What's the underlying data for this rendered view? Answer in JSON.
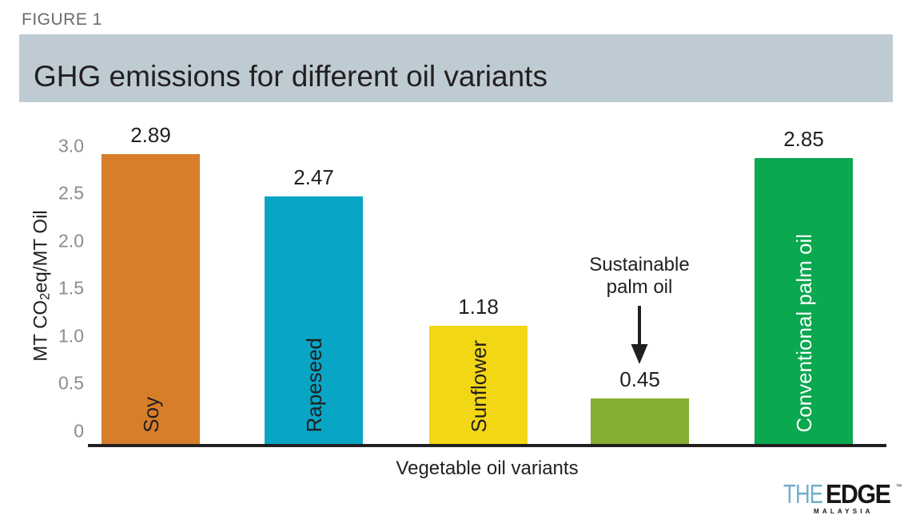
{
  "figure_label": "FIGURE 1",
  "title": "GHG emissions for different oil variants",
  "colors": {
    "banner_bg": "#BECBD2",
    "text_dark": "#231F20",
    "tick_label_gray": "#8A8C8E",
    "figure_label_gray": "#6A6B6D",
    "axis_line": "#231F20",
    "logo_the_blue": "#6FAECB",
    "logo_edge_black": "#161616"
  },
  "chart_data": {
    "type": "bar",
    "title": "GHG emissions for different oil variants",
    "xlabel": "Vegetable oil variants",
    "ylabel": "MT CO₂eq/MT Oil",
    "ylabel_parts": {
      "pre": "MT CO",
      "sub": "2",
      "post": "eq/MT Oil"
    },
    "ylim": [
      0,
      3.0
    ],
    "yticks": [
      "3.0",
      "2.5",
      "2.0",
      "1.5",
      "1.0",
      "0.5",
      "0"
    ],
    "grid": false,
    "legend": false,
    "categories": [
      "Soy",
      "Rapeseed",
      "Sunflower",
      "Sustainable palm oil",
      "Conventional palm oil"
    ],
    "values": [
      2.89,
      2.47,
      1.18,
      0.45,
      2.85
    ],
    "bars": [
      {
        "category": "Soy",
        "value": 2.89,
        "display_value": "2.89",
        "bar_text": "Soy",
        "color": "#D87E2B",
        "label_color": "#231F20"
      },
      {
        "category": "Rapeseed",
        "value": 2.47,
        "display_value": "2.47",
        "bar_text": "Rapeseed",
        "color": "#09A5C5",
        "label_color": "#231F20"
      },
      {
        "category": "Sunflower",
        "value": 1.18,
        "display_value": "1.18",
        "bar_text": "Sunflower",
        "color": "#F2D714",
        "label_color": "#231F20"
      },
      {
        "category": "Sustainable palm oil",
        "value": 0.45,
        "display_value": "0.45",
        "bar_text": "",
        "color": "#85AD32",
        "label_color": "#231F20"
      },
      {
        "category": "Conventional palm oil",
        "value": 2.85,
        "display_value": "2.85",
        "bar_text": "Conventional palm oil",
        "color": "#0AA84F",
        "label_color": "#FFFFFF"
      }
    ],
    "annotation": {
      "text_line1": "Sustainable",
      "text_line2": "palm oil",
      "target": "Sustainable palm oil bar",
      "arrow": "down"
    }
  },
  "logo": {
    "the": "THE",
    "edge": "EDGE",
    "tm": "™",
    "malaysia": "MALAYSIA"
  }
}
